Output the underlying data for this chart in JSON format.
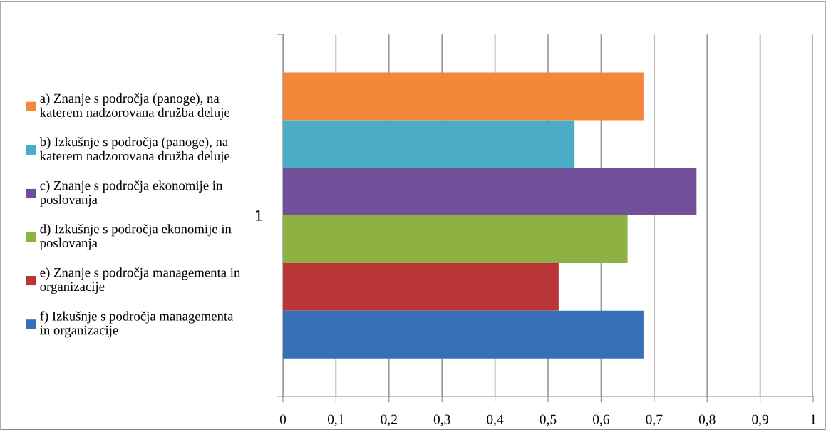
{
  "chart_data": {
    "type": "bar",
    "orientation": "horizontal",
    "categories": [
      "1"
    ],
    "series": [
      {
        "name": "a) Znanje s področja (panoge), na\nkaterem nadzorovana družba deluje",
        "color": "#f4883a",
        "values": [
          0.68
        ]
      },
      {
        "name": "b) Izkušnje s področja (panoge), na\nkaterem nadzorovana družba deluje",
        "color": "#4bacc6",
        "values": [
          0.55
        ]
      },
      {
        "name": "c) Znanje s področja ekonomije in\nposlovanja",
        "color": "#71509a",
        "values": [
          0.78
        ]
      },
      {
        "name": "d) Izkušnje s področja ekonomije in\nposlovanja",
        "color": "#8eb144",
        "values": [
          0.65
        ]
      },
      {
        "name": "e) Znanje s področja managementa in\norganizacije",
        "color": "#b93538",
        "values": [
          0.52
        ]
      },
      {
        "name": "f) Izkušnje s področja managementa\nin organizacije",
        "color": "#3670b6",
        "values": [
          0.68
        ]
      }
    ],
    "xlim": [
      0,
      1
    ],
    "xticks": [
      0,
      {
        "value": 0.1,
        "label": "0,1"
      },
      {
        "value": 0.2,
        "label": "0,2"
      },
      {
        "value": 0.3,
        "label": "0,3"
      },
      {
        "value": 0.4,
        "label": "0,4"
      },
      {
        "value": 0.5,
        "label": "0,5"
      },
      {
        "value": 0.6,
        "label": "0,6"
      },
      {
        "value": 0.7,
        "label": "0,7"
      },
      {
        "value": 0.8,
        "label": "0,8"
      },
      {
        "value": 0.9,
        "label": "0,9"
      },
      1
    ],
    "grid": "x",
    "legend": "left"
  }
}
